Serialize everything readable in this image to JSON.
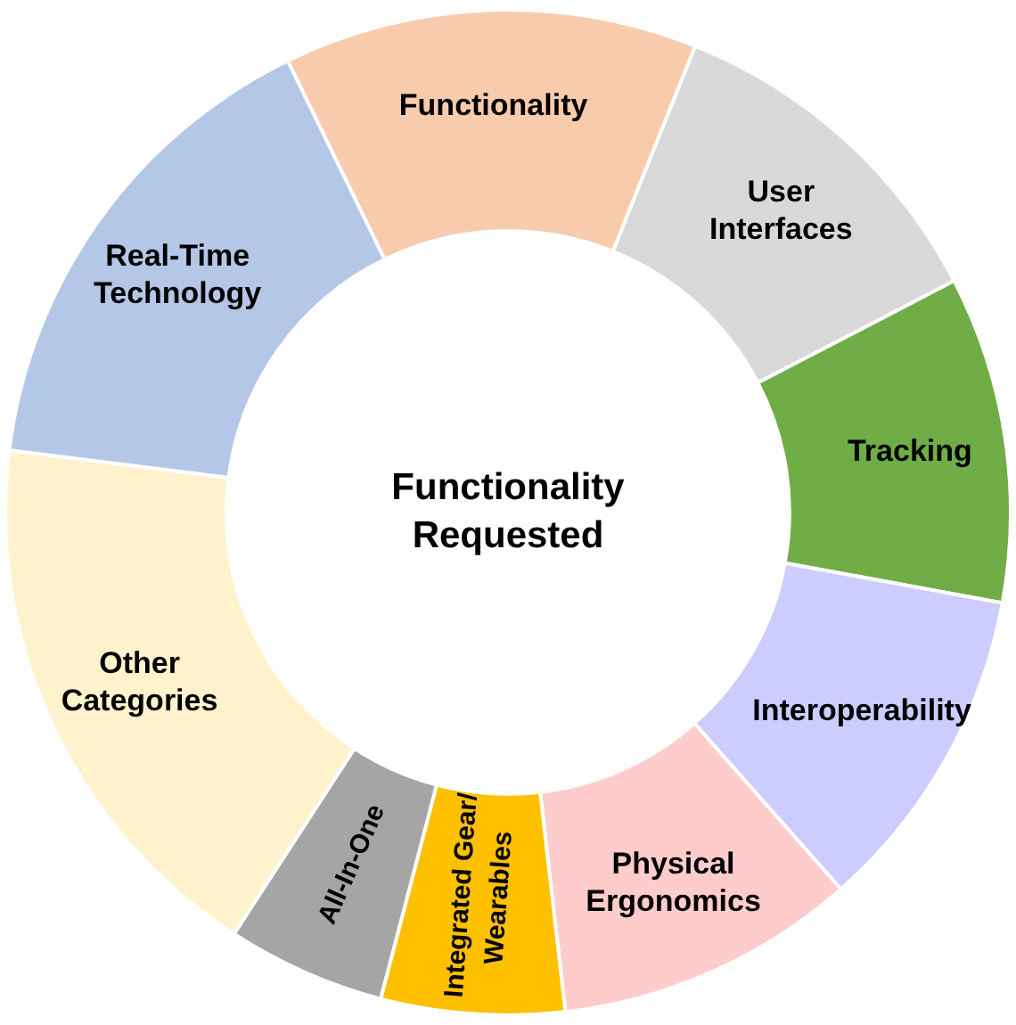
{
  "chart_data": {
    "type": "donut",
    "title": "Functionality Requested",
    "categories": [
      "Functionality",
      "User Interfaces",
      "Tracking",
      "Interoperability",
      "Physical Ergonomics",
      "Integrated Gear/ Wearables",
      "All-In-One",
      "Other Categories",
      "Real-Time Technology"
    ],
    "values": [
      13.3,
      11.3,
      10.5,
      10.6,
      9.7,
      5.9,
      5.1,
      17.8,
      15.8
    ],
    "colors": [
      "#f8cbad",
      "#d9d9d9",
      "#70ad47",
      "#ccccff",
      "#ffcccc",
      "#ffc000",
      "#a5a5a5",
      "#fff2cc",
      "#b4c7e7"
    ],
    "legend": false
  }
}
